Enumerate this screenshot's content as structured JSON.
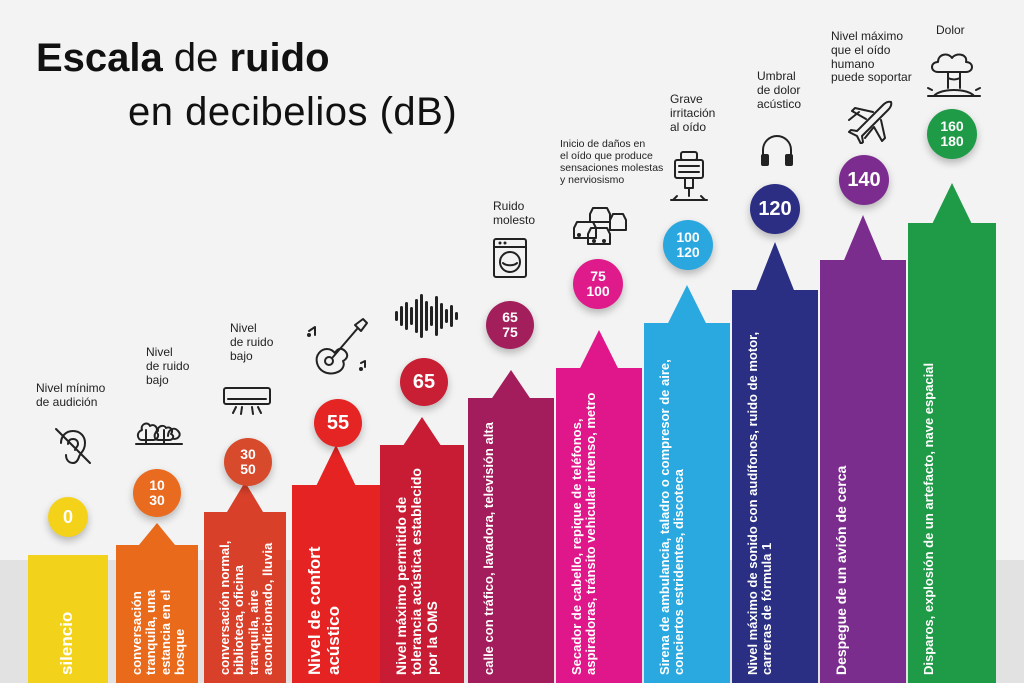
{
  "title": {
    "bold1": "Escala",
    "thin1": "de",
    "bold2": "ruido",
    "line2": "en decibelios (dB)"
  },
  "levels": [
    {
      "value1": "0",
      "value2": "",
      "color": "#f2d21b",
      "circle": "#f5d21a",
      "desc": "silencio",
      "label": "Nivel mínimo\nde audición",
      "icon": "deaf-ear-icon"
    },
    {
      "value1": "10",
      "value2": "30",
      "color": "#ea6a1b",
      "circle": "#e96b1f",
      "desc": "conversación tranquila, una estancia en el bosque",
      "label": "Nivel\nde ruido\nbajo",
      "icon": "forest-icon"
    },
    {
      "value1": "30",
      "value2": "50",
      "color": "#d9402a",
      "circle": "#d74a2c",
      "desc": "conversación normal, biblioteca, oficina tranquila, aire acondicionado, lluvia",
      "label": "Nivel\nde ruido\nbajo",
      "icon": "air-conditioner-icon"
    },
    {
      "value1": "55",
      "value2": "",
      "color": "#e52323",
      "circle": "#e52424",
      "desc": "Nivel de confort acústico",
      "label": "",
      "icon": "guitar-icon"
    },
    {
      "value1": "65",
      "value2": "",
      "color": "#c71c33",
      "circle": "#c81f34",
      "desc": "Nivel máximo permitido de tolerancia acústica establecido por la OMS",
      "label": "",
      "icon": "sound-wave-icon"
    },
    {
      "value1": "65",
      "value2": "75",
      "color": "#a31c5b",
      "circle": "#a31f5c",
      "desc": "calle con tráfico, lavadora, televisión alta",
      "label": "Ruido\nmolesto",
      "icon": "washing-machine-icon"
    },
    {
      "value1": "75",
      "value2": "100",
      "color": "#e0178a",
      "circle": "#df1b8b",
      "desc": "Secador de cabello, repique de teléfonos, aspiradoras, tránsito vehicular intenso, metro",
      "label": "Inicio de daños en\nel oído que produce\nsensaciones molestas\ny nerviosismo",
      "icon": "traffic-icon"
    },
    {
      "value1": "100",
      "value2": "120",
      "color": "#2aa9e0",
      "circle": "#2aa7de",
      "desc": "Sirena de ambulancia, taladro o compresor de aire, conciertos estridentes, discoteca",
      "label": "Grave\nirritación\nal oído",
      "icon": "jackhammer-icon"
    },
    {
      "value1": "120",
      "value2": "",
      "color": "#2a2f83",
      "circle": "#2b2e83",
      "desc": "Nivel máximo de sonido con audífonos, ruido de motor, carreras de fórmula 1",
      "label": "Umbral\nde dolor\nacústico",
      "icon": "headphones-icon"
    },
    {
      "value1": "140",
      "value2": "",
      "color": "#7b2d8e",
      "circle": "#7c2c8f",
      "desc": "Despegue de un avión de cerca",
      "label": "Nivel máximo\nque el oído\nhumano\npuede soportar",
      "icon": "airplane-icon"
    },
    {
      "value1": "160",
      "value2": "180",
      "color": "#1f9a46",
      "circle": "#1f9a46",
      "desc": "Disparos, explosión de un artefacto, nave espacial",
      "label": "Dolor",
      "icon": "explosion-icon"
    }
  ]
}
